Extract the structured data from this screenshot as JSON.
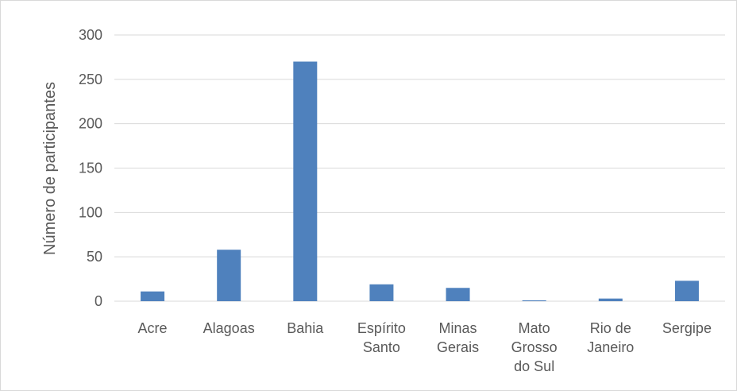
{
  "chart_data": {
    "type": "bar",
    "title": "",
    "xlabel": "",
    "ylabel": "Número de participantes",
    "categories": [
      [
        "Acre"
      ],
      [
        "Alagoas"
      ],
      [
        "Bahia"
      ],
      [
        "Espírito",
        "Santo"
      ],
      [
        "Minas",
        "Gerais"
      ],
      [
        "Mato",
        "Grosso",
        "do Sul"
      ],
      [
        "Rio de",
        "Janeiro"
      ],
      [
        "Sergipe"
      ]
    ],
    "values": [
      11,
      58,
      270,
      19,
      15,
      1,
      3,
      23
    ],
    "ylim": [
      0,
      300
    ],
    "yticks": [
      "0",
      "50",
      "100",
      "150",
      "200",
      "250",
      "300"
    ],
    "grid": true,
    "legend": "none",
    "bar_color": "#4f81bd",
    "grid_color": "#d9d9d9"
  }
}
